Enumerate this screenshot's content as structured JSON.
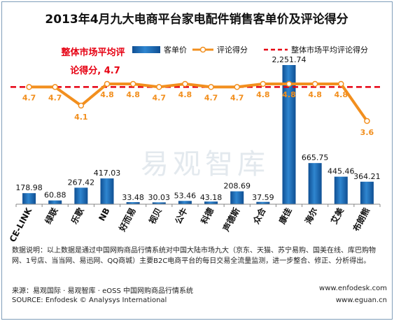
{
  "chart_data": {
    "type": "bar",
    "title": "2013年4月九大电商平台家电配件销售客单价及评论得分",
    "categories": [
      "CE-LINK",
      "绿联",
      "乐歌",
      "NB",
      "好而易",
      "视贝",
      "公牛",
      "科德",
      "声德斯",
      "众合",
      "康佳",
      "海尔",
      "艾美",
      "布朗熊"
    ],
    "series": [
      {
        "name": "客单价",
        "kind": "bar",
        "color": "#1f6fb8",
        "values": [
          178.98,
          60.88,
          267.42,
          417.03,
          33.48,
          30.03,
          53.46,
          43.18,
          208.69,
          37.59,
          2251.74,
          665.75,
          445.46,
          364.21
        ],
        "labels": [
          "178.98",
          "60.88",
          "267.42",
          "417.03",
          "33.48",
          "30.03",
          "53.46",
          "43.18",
          "208.69",
          "37.59",
          "2,251.74",
          "665.75",
          "445.46",
          "364.21"
        ]
      },
      {
        "name": "评论得分",
        "kind": "line",
        "color": "#f28f1e",
        "values": [
          4.7,
          4.7,
          4.1,
          4.8,
          4.8,
          4.7,
          4.8,
          4.7,
          4.7,
          4.8,
          4.8,
          4.8,
          4.8,
          3.6
        ],
        "labels": [
          "4.7",
          "4.7",
          "4.1",
          "4.8",
          "4.8",
          "4.7",
          "4.8",
          "4.7",
          "4.7",
          "4.8",
          "4.8",
          "4.8",
          "4.8",
          "3.6"
        ]
      },
      {
        "name": "整体市场平均评论得分",
        "kind": "reference",
        "color": "#e60012",
        "value": 4.7
      }
    ],
    "annotation": "整体市场平均评\n论得分, 4.7",
    "grid": false,
    "legend_position": "top-right"
  },
  "notes": "数据说明：以上数据是通过中国网购商品行情系统对中国大陆市场九大（京东、天猫、苏宁易购、国美在线、库巴购物网、1号店、当当网、易迅网、QQ商城）主要B2C电商平台的每日交易全流量监测，进一步整合、修正、分析得出。",
  "footer": {
    "source_cn": "来源：易观国际 · 易观智库 · eOSS 中国网购商品行情系统",
    "url1": "www.enfodesk.com",
    "source_en": "SOURCE: Enfodesk © Analysys International",
    "url2": "www.eguan.cn"
  },
  "watermark": "易观智库"
}
